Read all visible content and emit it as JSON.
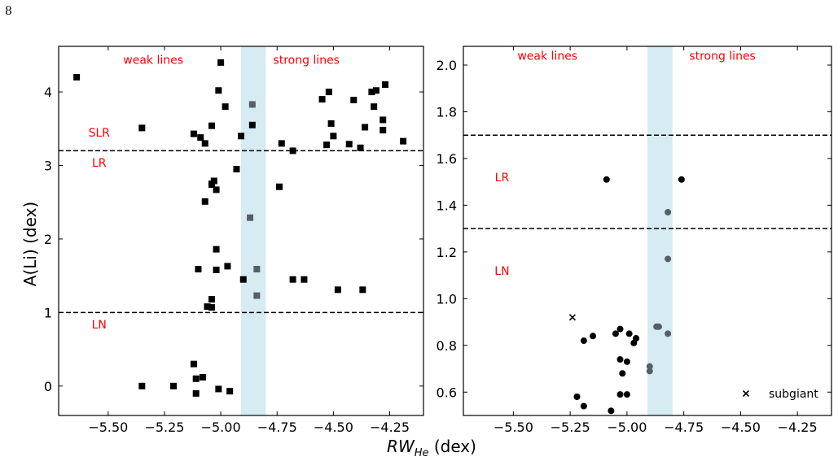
{
  "page_number": "8",
  "colors": {
    "annotation": "#ff0000",
    "band": "#add8e6",
    "marker": "#000000",
    "marker_in_band": "#555f66"
  },
  "figure": {
    "xlabel_main": "RW",
    "xlabel_sub": "He",
    "xlabel_unit": " (dex)",
    "ylabel": "A(Li) (dex)"
  },
  "chart_data": [
    {
      "type": "scatter",
      "marker": "square",
      "xlim": [
        -5.72,
        -4.1
      ],
      "ylim": [
        -0.4,
        4.62
      ],
      "xticks": [
        -5.5,
        -5.25,
        -5.0,
        -4.75,
        -4.5,
        -4.25
      ],
      "xtick_labels": [
        "−5.50",
        "−5.25",
        "−5.00",
        "−4.75",
        "−4.50",
        "−4.25"
      ],
      "yticks": [
        0,
        1,
        2,
        3,
        4
      ],
      "ytick_labels": [
        "0",
        "1",
        "2",
        "3",
        "4"
      ],
      "band": [
        -4.91,
        -4.8
      ],
      "hlines": [
        1.0,
        3.2
      ],
      "annotations": [
        {
          "text": "weak lines",
          "x": -5.3,
          "y": 4.44
        },
        {
          "text": "strong lines",
          "x": -4.62,
          "y": 4.44
        },
        {
          "text": "SLR",
          "x": -5.54,
          "y": 3.45
        },
        {
          "text": "LR",
          "x": -5.54,
          "y": 3.04
        },
        {
          "text": "LN",
          "x": -5.54,
          "y": 0.84
        }
      ],
      "series": [
        {
          "style": "black",
          "x": [
            -5.64,
            -5.35,
            -5.12,
            -5.09,
            -5.07,
            -5.04,
            -5.01,
            -5.0,
            -4.98,
            -4.91,
            -4.86,
            -4.73,
            -4.68,
            -4.55,
            -4.52,
            -4.51,
            -4.5,
            -4.41,
            -4.36,
            -4.33,
            -4.32,
            -4.31,
            -4.28,
            -4.28,
            -4.27,
            -4.19,
            -5.07,
            -5.04,
            -4.93,
            -5.03,
            -5.04,
            -5.02,
            -5.02,
            -5.1,
            -4.74,
            -4.68,
            -5.02,
            -5.04,
            -5.06,
            -5.04,
            -4.97,
            -4.9,
            -4.63,
            -4.48,
            -4.37,
            -5.35,
            -5.21,
            -5.12,
            -5.11,
            -5.11,
            -5.08,
            -5.01,
            -4.96,
            -4.53,
            -4.43,
            -4.38
          ],
          "y": [
            4.2,
            3.51,
            3.43,
            3.38,
            3.3,
            3.54,
            4.02,
            4.4,
            3.8,
            3.4,
            3.55,
            3.3,
            3.2,
            3.9,
            4.0,
            3.57,
            3.4,
            3.89,
            3.52,
            4.0,
            3.8,
            4.02,
            3.62,
            3.48,
            4.1,
            3.33,
            2.51,
            2.75,
            2.95,
            2.79,
            2.74,
            2.67,
            1.86,
            1.59,
            2.71,
            1.45,
            1.58,
            1.18,
            1.08,
            1.07,
            1.63,
            1.45,
            1.45,
            1.31,
            1.31,
            0.0,
            0.0,
            0.3,
            0.1,
            -0.1,
            0.12,
            -0.04,
            -0.07,
            3.28,
            3.29,
            3.24
          ]
        },
        {
          "style": "gray",
          "x": [
            -4.86,
            -4.87,
            -4.84,
            -4.84
          ],
          "y": [
            3.83,
            2.29,
            1.59,
            1.23
          ]
        }
      ]
    },
    {
      "type": "scatter",
      "marker": "circle",
      "xlim": [
        -5.72,
        -4.1
      ],
      "ylim": [
        0.5,
        2.08
      ],
      "xticks": [
        -5.5,
        -5.25,
        -5.0,
        -4.75,
        -4.5,
        -4.25
      ],
      "xtick_labels": [
        "−5.50",
        "−5.25",
        "−5.00",
        "−4.75",
        "−4.50",
        "−4.25"
      ],
      "yticks": [
        0.6,
        0.8,
        1.0,
        1.2,
        1.4,
        1.6,
        1.8,
        2.0
      ],
      "ytick_labels": [
        "0.6",
        "0.8",
        "1.0",
        "1.2",
        "1.4",
        "1.6",
        "1.8",
        "2.0"
      ],
      "band": [
        -4.91,
        -4.8
      ],
      "hlines": [
        1.3,
        1.7
      ],
      "annotations": [
        {
          "text": "weak lines",
          "x": -5.35,
          "y": 2.04
        },
        {
          "text": "strong lines",
          "x": -4.58,
          "y": 2.04
        },
        {
          "text": "LR",
          "x": -5.55,
          "y": 1.52
        },
        {
          "text": "LN",
          "x": -5.55,
          "y": 1.12
        }
      ],
      "legend": {
        "label": "subgiant",
        "marker": "cross",
        "position": "lower right"
      },
      "series": [
        {
          "style": "black",
          "x": [
            -5.09,
            -4.76,
            -5.03,
            -5.05,
            -4.99,
            -4.96,
            -5.15,
            -5.19,
            -5.03,
            -5.0,
            -5.02,
            -4.97,
            -4.96,
            -5.03,
            -5.22,
            -5.19,
            -5.0,
            -5.07
          ],
          "y": [
            1.51,
            1.51,
            0.87,
            0.85,
            0.85,
            0.83,
            0.84,
            0.82,
            0.74,
            0.73,
            0.68,
            0.81,
            0.83,
            0.59,
            0.58,
            0.54,
            0.59,
            0.52
          ]
        },
        {
          "style": "gray",
          "x": [
            -4.82,
            -4.82,
            -4.87,
            -4.86,
            -4.82,
            -4.9,
            -4.9
          ],
          "y": [
            1.37,
            1.17,
            0.88,
            0.88,
            0.85,
            0.71,
            0.69
          ]
        },
        {
          "name": "subgiant",
          "style": "cross",
          "x": [
            -5.24
          ],
          "y": [
            0.92
          ]
        }
      ]
    }
  ]
}
